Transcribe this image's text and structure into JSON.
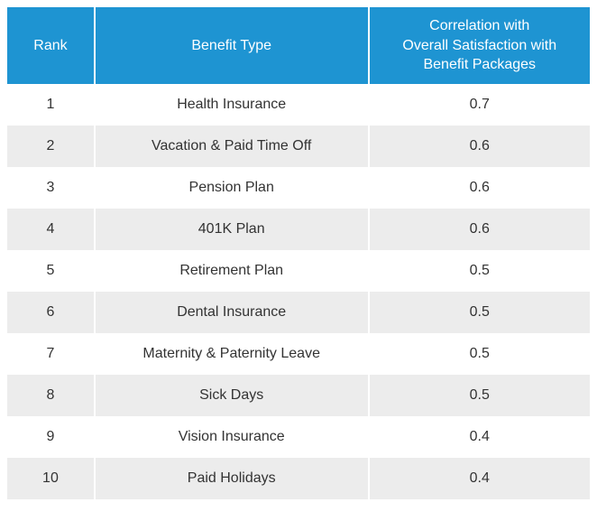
{
  "table": {
    "type": "table",
    "header_bg": "#1e94d2",
    "header_text_color": "#ffffff",
    "row_alt_bg": "#ececec",
    "row_bg": "#ffffff",
    "text_color": "#333333",
    "font_size": 16,
    "columns": [
      {
        "key": "rank",
        "label": "Rank",
        "width_pct": 15
      },
      {
        "key": "benefit",
        "label": "Benefit Type",
        "width_pct": 47
      },
      {
        "key": "corr",
        "label": "Correlation with\nOverall Satisfaction with\nBenefit Packages",
        "width_pct": 38
      }
    ],
    "rows": [
      {
        "rank": "1",
        "benefit": "Health Insurance",
        "corr": "0.7"
      },
      {
        "rank": "2",
        "benefit": "Vacation & Paid Time Off",
        "corr": "0.6"
      },
      {
        "rank": "3",
        "benefit": "Pension Plan",
        "corr": "0.6"
      },
      {
        "rank": "4",
        "benefit": "401K Plan",
        "corr": "0.6"
      },
      {
        "rank": "5",
        "benefit": "Retirement Plan",
        "corr": "0.5"
      },
      {
        "rank": "6",
        "benefit": "Dental Insurance",
        "corr": "0.5"
      },
      {
        "rank": "7",
        "benefit": "Maternity & Paternity Leave",
        "corr": "0.5"
      },
      {
        "rank": "8",
        "benefit": "Sick Days",
        "corr": "0.5"
      },
      {
        "rank": "9",
        "benefit": "Vision Insurance",
        "corr": "0.4"
      },
      {
        "rank": "10",
        "benefit": "Paid Holidays",
        "corr": "0.4"
      }
    ]
  }
}
